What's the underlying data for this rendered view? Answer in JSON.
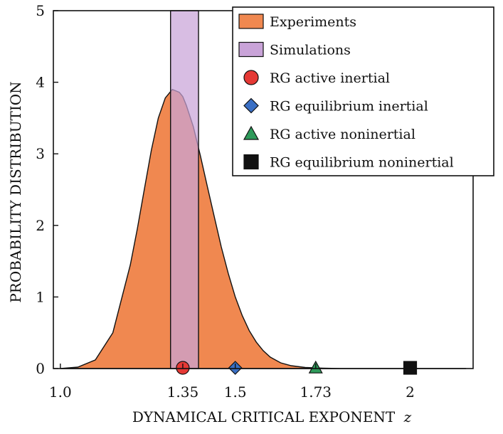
{
  "chart_data": {
    "type": "area",
    "xlabel_main": "DYNAMICAL CRITICAL EXPONENT",
    "xlabel_var": "z",
    "ylabel": "PROBABILITY DISTRIBUTION",
    "xlim": [
      0.98,
      2.18
    ],
    "ylim": [
      0,
      5
    ],
    "x_ticks": [
      {
        "value": 1.0,
        "label": "1.0"
      },
      {
        "value": 1.35,
        "label": "1.35"
      },
      {
        "value": 1.5,
        "label": "1.5"
      },
      {
        "value": 1.73,
        "label": "1.73"
      },
      {
        "value": 2.0,
        "label": "2"
      }
    ],
    "y_ticks": [
      {
        "value": 0,
        "label": "0"
      },
      {
        "value": 1,
        "label": "1"
      },
      {
        "value": 2,
        "label": "2"
      },
      {
        "value": 3,
        "label": "3"
      },
      {
        "value": 4,
        "label": "4"
      },
      {
        "value": 5,
        "label": "5"
      }
    ],
    "experiments_curve": {
      "name": "Experiments",
      "color": "#f08850",
      "x": [
        1.0,
        1.05,
        1.1,
        1.15,
        1.2,
        1.22,
        1.24,
        1.26,
        1.28,
        1.3,
        1.32,
        1.34,
        1.35,
        1.36,
        1.38,
        1.4,
        1.42,
        1.44,
        1.46,
        1.48,
        1.5,
        1.52,
        1.54,
        1.56,
        1.58,
        1.6,
        1.63,
        1.66,
        1.7,
        1.75,
        1.8,
        1.9,
        2.0,
        2.1,
        2.16
      ],
      "y": [
        0.0,
        0.02,
        0.12,
        0.5,
        1.45,
        1.95,
        2.5,
        3.05,
        3.5,
        3.78,
        3.9,
        3.86,
        3.8,
        3.68,
        3.38,
        2.98,
        2.55,
        2.12,
        1.7,
        1.33,
        1.0,
        0.74,
        0.53,
        0.37,
        0.25,
        0.16,
        0.08,
        0.04,
        0.015,
        0.005,
        0.0,
        0.0,
        0.0,
        0.0,
        0.0
      ]
    },
    "simulations_band": {
      "name": "Simulations",
      "color": "#c9a3d8",
      "x_min": 1.315,
      "x_max": 1.395,
      "y_max": 5
    },
    "markers": [
      {
        "name": "RG active inertial",
        "x": 1.35,
        "y": 0,
        "shape": "circle",
        "color": "#e53935"
      },
      {
        "name": "RG equilibrium inertial",
        "x": 1.5,
        "y": 0,
        "shape": "diamond",
        "color": "#3a6fc4"
      },
      {
        "name": "RG active noninertial",
        "x": 1.73,
        "y": 0,
        "shape": "triangle",
        "color": "#2e9a5a"
      },
      {
        "name": "RG equilibrium noninertial",
        "x": 2.0,
        "y": 0,
        "shape": "square",
        "color": "#111111"
      }
    ],
    "legend": {
      "placement": "top-right",
      "entries": [
        {
          "label": "Experiments",
          "symbol": "rect",
          "color": "#f08850"
        },
        {
          "label": "Simulations",
          "symbol": "rect",
          "color": "#c9a3d8"
        },
        {
          "label": "RG active inertial",
          "symbol": "circle",
          "color": "#e53935"
        },
        {
          "label": "RG equilibrium inertial",
          "symbol": "diamond",
          "color": "#3a6fc4"
        },
        {
          "label": "RG active noninertial",
          "symbol": "triangle",
          "color": "#2e9a5a"
        },
        {
          "label": "RG equilibrium noninertial",
          "symbol": "square",
          "color": "#111111"
        }
      ]
    }
  }
}
